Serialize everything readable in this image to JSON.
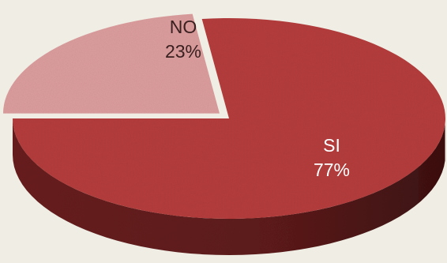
{
  "chart_data": {
    "type": "pie",
    "style": "3d-tilted",
    "slices": [
      {
        "label": "SI",
        "value": 77,
        "value_label": "77%",
        "color": "#b53c3c",
        "side_color": "#6e1f1f",
        "text_color": "#ffffff"
      },
      {
        "label": "NO",
        "value": 23,
        "value_label": "23%",
        "color": "#dc9d9d",
        "side_color": "#a86a6a",
        "text_color": "#3a2020",
        "exploded": true
      }
    ],
    "legend": "none",
    "background": "#efede4"
  }
}
